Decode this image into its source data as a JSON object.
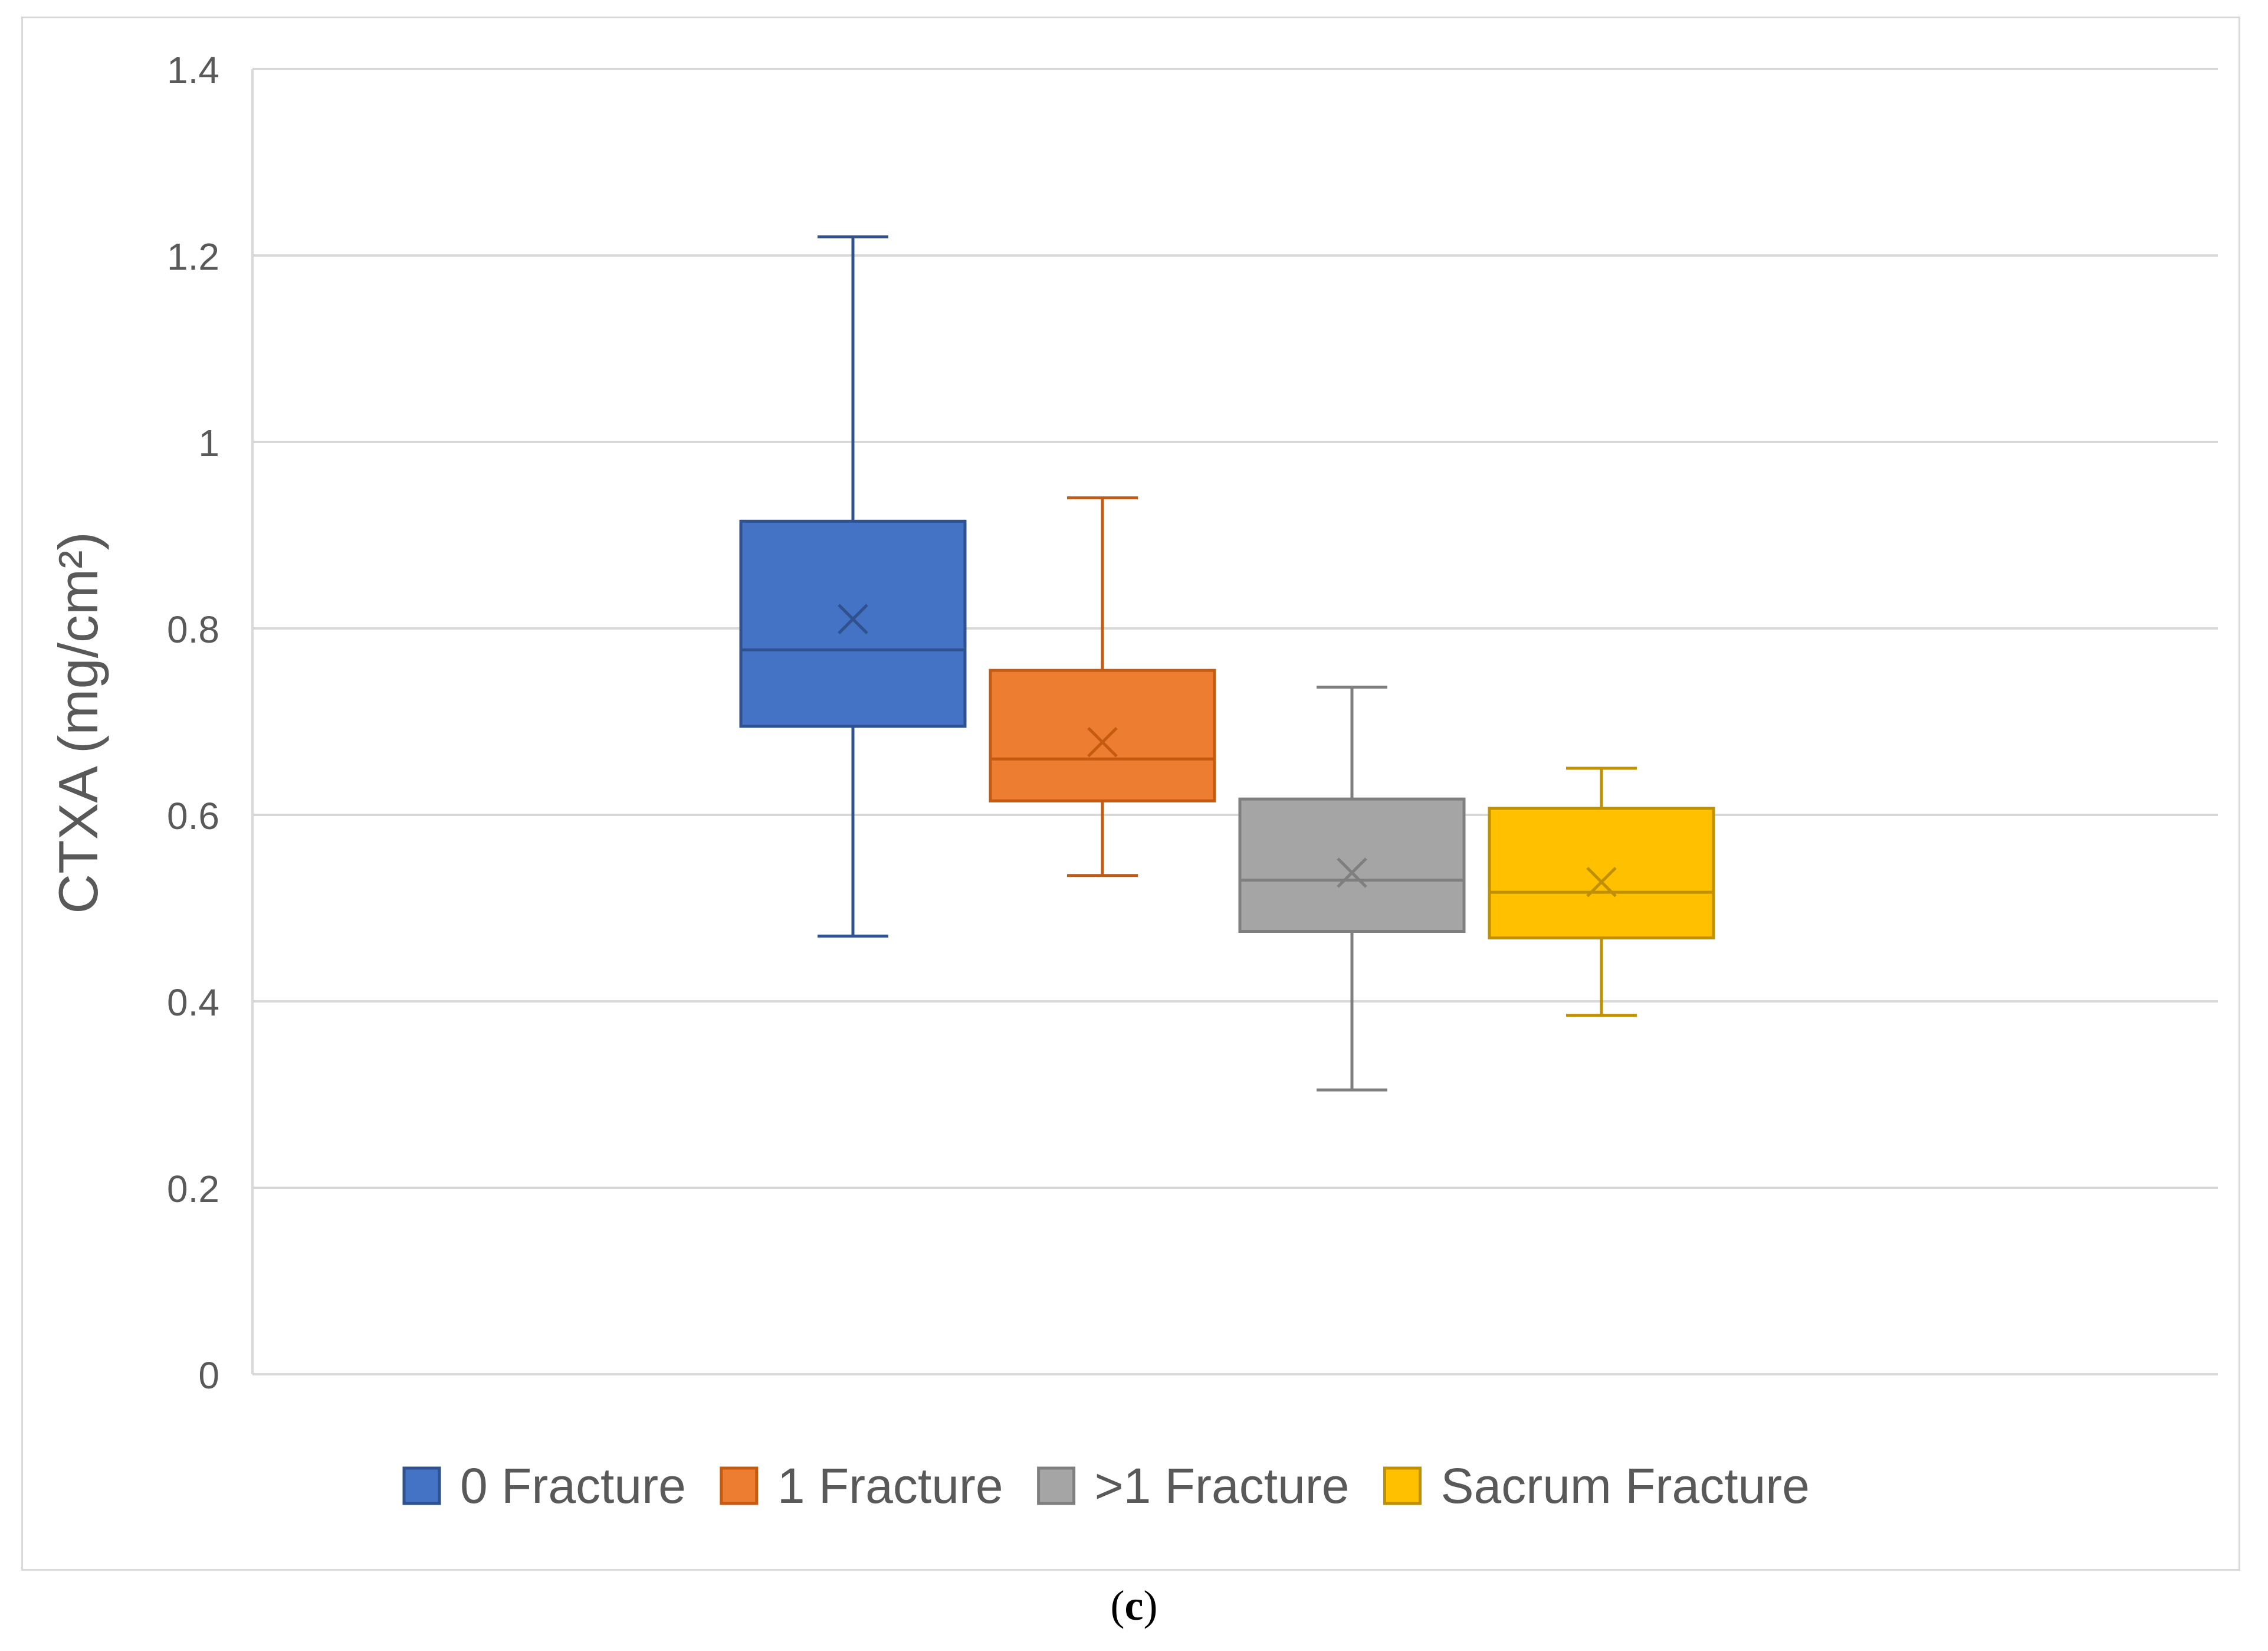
{
  "chart_data": {
    "type": "box",
    "title": "",
    "xlabel": "",
    "ylabel": "CTXA (mg/cm²)",
    "ylim": [
      0,
      1.4
    ],
    "yticks": [
      0,
      0.2,
      0.4,
      0.6,
      0.8,
      1,
      1.2,
      1.4
    ],
    "ytick_labels": [
      "0",
      "0.2",
      "0.4",
      "0.6",
      "0.8",
      "1",
      "1.2",
      "1.4"
    ],
    "grid": true,
    "legend_position": "bottom",
    "series": [
      {
        "name": "0 Fracture",
        "color": "#4472C4",
        "stroke": "#2F528F",
        "min": 0.47,
        "q1": 0.695,
        "median": 0.777,
        "q3": 0.915,
        "max": 1.22,
        "mean": 0.81
      },
      {
        "name": "1 Fracture",
        "color": "#ED7D31",
        "stroke": "#C55A11",
        "min": 0.535,
        "q1": 0.615,
        "median": 0.66,
        "q3": 0.755,
        "max": 0.94,
        "mean": 0.678
      },
      {
        "name": ">1 Fracture",
        "color": "#A5A5A5",
        "stroke": "#7F7F7F",
        "min": 0.305,
        "q1": 0.475,
        "median": 0.53,
        "q3": 0.617,
        "max": 0.737,
        "mean": 0.538
      },
      {
        "name": "Sacrum Fracture",
        "color": "#FFC000",
        "stroke": "#BF9000",
        "min": 0.385,
        "q1": 0.468,
        "median": 0.517,
        "q3": 0.607,
        "max": 0.65,
        "mean": 0.528
      }
    ]
  },
  "caption": {
    "open": "(",
    "letter": "c",
    "close": ")"
  }
}
